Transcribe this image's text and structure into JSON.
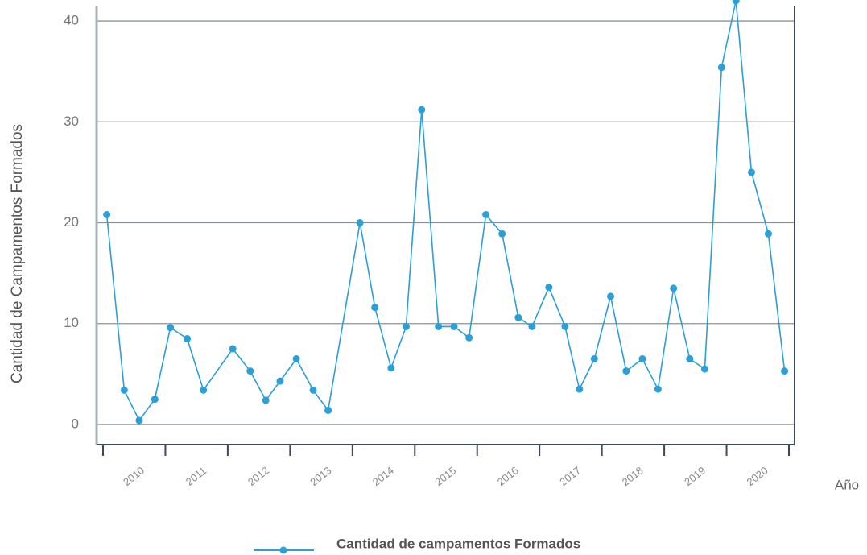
{
  "chart_data": {
    "type": "line",
    "y_label": "Cantidad de Campamentos Formados",
    "x_label": "Año",
    "year_labels": [
      "2010",
      "2011",
      "2012",
      "2013",
      "2014",
      "2015",
      "2016",
      "2017",
      "2018",
      "2019",
      "2020"
    ],
    "xlim": [
      2010,
      2021
    ],
    "xticks": [
      2010,
      2011,
      2012,
      2013,
      2014,
      2015,
      2016,
      2017,
      2018,
      2019,
      2020,
      2021
    ],
    "ylim": [
      -2,
      42
    ],
    "yticks": [
      0,
      10,
      20,
      30,
      40
    ],
    "grid": true,
    "series": [
      {
        "name": "Cantidad de campamentos  Formados",
        "color": "#2a9fd8",
        "x": [
          2010.06,
          2010.34,
          2010.58,
          2010.83,
          2011.08,
          2011.35,
          2011.61,
          2012.08,
          2012.36,
          2012.61,
          2012.84,
          2013.1,
          2013.37,
          2013.61,
          2014.12,
          2014.36,
          2014.62,
          2014.86,
          2015.11,
          2015.38,
          2015.63,
          2015.87,
          2016.14,
          2016.4,
          2016.66,
          2016.88,
          2017.15,
          2017.41,
          2017.64,
          2017.88,
          2018.14,
          2018.39,
          2018.65,
          2018.9,
          2019.15,
          2019.41,
          2019.65,
          2019.92,
          2020.15,
          2020.4,
          2020.67,
          2020.93
        ],
        "values": [
          20.8,
          3.4,
          0.4,
          2.5,
          9.6,
          8.5,
          3.4,
          7.5,
          5.3,
          2.4,
          4.3,
          6.5,
          3.4,
          1.4,
          20,
          11.6,
          5.6,
          9.7,
          31.2,
          9.7,
          9.7,
          8.6,
          20.8,
          18.9,
          10.6,
          9.7,
          13.6,
          9.7,
          3.5,
          6.5,
          12.7,
          5.3,
          6.5,
          3.5,
          13.5,
          6.5,
          5.5,
          35.4,
          42,
          25,
          18.9,
          5.3
        ]
      }
    ]
  }
}
